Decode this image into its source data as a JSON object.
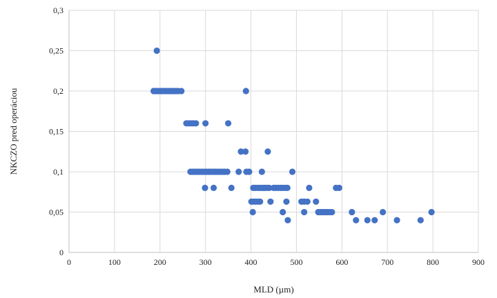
{
  "chart_data": {
    "type": "scatter",
    "title": "",
    "xlabel": "MLD (µm)",
    "ylabel": "NKCZO pred operáciou",
    "xlim": [
      0,
      900
    ],
    "ylim": [
      0,
      0.3
    ],
    "x_ticks": [
      0,
      100,
      200,
      300,
      400,
      500,
      600,
      700,
      800,
      900
    ],
    "x_tick_labels": [
      "0",
      "100",
      "200",
      "300",
      "400",
      "500",
      "600",
      "700",
      "800",
      "900"
    ],
    "y_ticks": [
      0,
      0.05,
      0.1,
      0.15,
      0.2,
      0.25,
      0.3
    ],
    "y_tick_labels": [
      "0",
      "0,05",
      "0,1",
      "0,15",
      "0,2",
      "0,25",
      "0,3"
    ],
    "grid": true,
    "legend": "none",
    "marker_color": "#4472C4",
    "series": [
      {
        "points": [
          [
            193,
            0.25
          ],
          [
            186,
            0.2
          ],
          [
            190,
            0.2
          ],
          [
            195,
            0.2
          ],
          [
            200,
            0.2
          ],
          [
            205,
            0.2
          ],
          [
            210,
            0.2
          ],
          [
            215,
            0.2
          ],
          [
            220,
            0.2
          ],
          [
            225,
            0.2
          ],
          [
            230,
            0.2
          ],
          [
            235,
            0.2
          ],
          [
            240,
            0.2
          ],
          [
            247,
            0.2
          ],
          [
            389,
            0.2
          ],
          [
            258,
            0.16
          ],
          [
            263,
            0.16
          ],
          [
            268,
            0.16
          ],
          [
            273,
            0.16
          ],
          [
            279,
            0.16
          ],
          [
            300,
            0.16
          ],
          [
            350,
            0.16
          ],
          [
            378,
            0.125
          ],
          [
            388,
            0.125
          ],
          [
            437,
            0.125
          ],
          [
            267,
            0.1
          ],
          [
            272,
            0.1
          ],
          [
            277,
            0.1
          ],
          [
            282,
            0.1
          ],
          [
            287,
            0.1
          ],
          [
            292,
            0.1
          ],
          [
            297,
            0.1
          ],
          [
            302,
            0.1
          ],
          [
            307,
            0.1
          ],
          [
            312,
            0.1
          ],
          [
            317,
            0.1
          ],
          [
            322,
            0.1
          ],
          [
            327,
            0.1
          ],
          [
            332,
            0.1
          ],
          [
            337,
            0.1
          ],
          [
            342,
            0.1
          ],
          [
            348,
            0.1
          ],
          [
            373,
            0.1
          ],
          [
            390,
            0.1
          ],
          [
            396,
            0.1
          ],
          [
            424,
            0.1
          ],
          [
            491,
            0.1
          ],
          [
            299,
            0.08
          ],
          [
            318,
            0.08
          ],
          [
            357,
            0.08
          ],
          [
            405,
            0.08
          ],
          [
            410,
            0.08
          ],
          [
            415,
            0.08
          ],
          [
            420,
            0.08
          ],
          [
            425,
            0.08
          ],
          [
            430,
            0.08
          ],
          [
            435,
            0.08
          ],
          [
            440,
            0.08
          ],
          [
            450,
            0.08
          ],
          [
            455,
            0.08
          ],
          [
            460,
            0.08
          ],
          [
            465,
            0.08
          ],
          [
            470,
            0.08
          ],
          [
            475,
            0.08
          ],
          [
            480,
            0.08
          ],
          [
            528,
            0.08
          ],
          [
            587,
            0.08
          ],
          [
            594,
            0.08
          ],
          [
            401,
            0.063
          ],
          [
            405,
            0.063
          ],
          [
            410,
            0.063
          ],
          [
            415,
            0.063
          ],
          [
            420,
            0.063
          ],
          [
            443,
            0.063
          ],
          [
            478,
            0.063
          ],
          [
            511,
            0.063
          ],
          [
            517,
            0.063
          ],
          [
            524,
            0.063
          ],
          [
            543,
            0.063
          ],
          [
            404,
            0.05
          ],
          [
            470,
            0.05
          ],
          [
            517,
            0.05
          ],
          [
            548,
            0.05
          ],
          [
            553,
            0.05
          ],
          [
            558,
            0.05
          ],
          [
            563,
            0.05
          ],
          [
            568,
            0.05
          ],
          [
            573,
            0.05
          ],
          [
            578,
            0.05
          ],
          [
            622,
            0.05
          ],
          [
            690,
            0.05
          ],
          [
            797,
            0.05
          ],
          [
            481,
            0.04
          ],
          [
            631,
            0.04
          ],
          [
            656,
            0.04
          ],
          [
            672,
            0.04
          ],
          [
            721,
            0.04
          ],
          [
            773,
            0.04
          ]
        ]
      }
    ]
  }
}
